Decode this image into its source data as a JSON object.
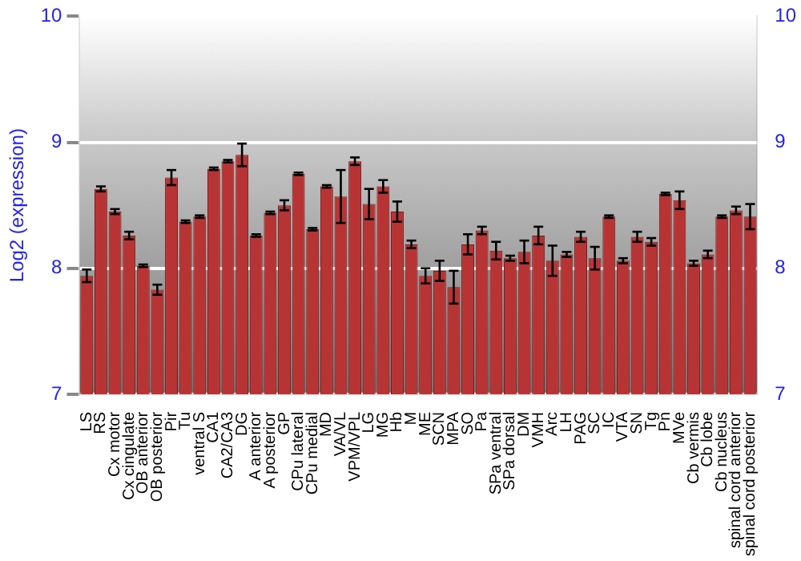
{
  "chart_data": {
    "type": "bar",
    "ylabel": "Log2 (expression)",
    "categories": [
      "LS",
      "RS",
      "Cx motor",
      "Cx cingulate",
      "OB anterior",
      "OB posterior",
      "Pir",
      "Tu",
      "ventral S",
      "CA1",
      "CA2/CA3",
      "DG",
      "A anterior",
      "A posterior",
      "GP",
      "CPu lateral",
      "CPu medial",
      "MD",
      "VA/VL",
      "VPM/VPL",
      "LG",
      "MG",
      "Hb",
      "M",
      "ME",
      "SCN",
      "MPA",
      "SO",
      "Pa",
      "SPa ventral",
      "SPa dorsal",
      "DM",
      "VMH",
      "Arc",
      "LH",
      "PAG",
      "SC",
      "IC",
      "VTA",
      "SN",
      "Tg",
      "Pn",
      "MVe",
      "Cb vermis",
      "Cb lobe",
      "Cb nucleus",
      "spinal cord anterior",
      "spinal cord posterior"
    ],
    "values": [
      7.94,
      8.63,
      8.45,
      8.26,
      8.02,
      7.83,
      8.72,
      8.37,
      8.41,
      8.79,
      8.85,
      8.9,
      8.26,
      8.44,
      8.5,
      8.75,
      8.31,
      8.65,
      8.57,
      8.85,
      8.51,
      8.65,
      8.45,
      8.19,
      7.94,
      7.98,
      7.85,
      8.19,
      8.3,
      8.14,
      8.08,
      8.13,
      8.26,
      8.06,
      8.11,
      8.25,
      8.08,
      8.41,
      8.06,
      8.25,
      8.21,
      8.59,
      8.54,
      8.04,
      8.11,
      8.41,
      8.46,
      8.41
    ],
    "errors": [
      0.05,
      0.02,
      0.02,
      0.03,
      0.01,
      0.04,
      0.06,
      0.01,
      0.01,
      0.01,
      0.01,
      0.09,
      0.01,
      0.01,
      0.04,
      0.01,
      0.01,
      0.01,
      0.21,
      0.03,
      0.12,
      0.05,
      0.08,
      0.03,
      0.06,
      0.08,
      0.13,
      0.08,
      0.03,
      0.07,
      0.02,
      0.09,
      0.07,
      0.12,
      0.02,
      0.04,
      0.09,
      0.01,
      0.02,
      0.04,
      0.03,
      0.01,
      0.07,
      0.02,
      0.03,
      0.01,
      0.03,
      0.1
    ],
    "color": "#b83434",
    "ylim": [
      7,
      10
    ],
    "yticks": [
      7,
      8,
      9,
      10
    ],
    "y2lim": [
      7,
      10
    ],
    "y2ticks": [
      7,
      8,
      9,
      10
    ],
    "grid": "y"
  }
}
